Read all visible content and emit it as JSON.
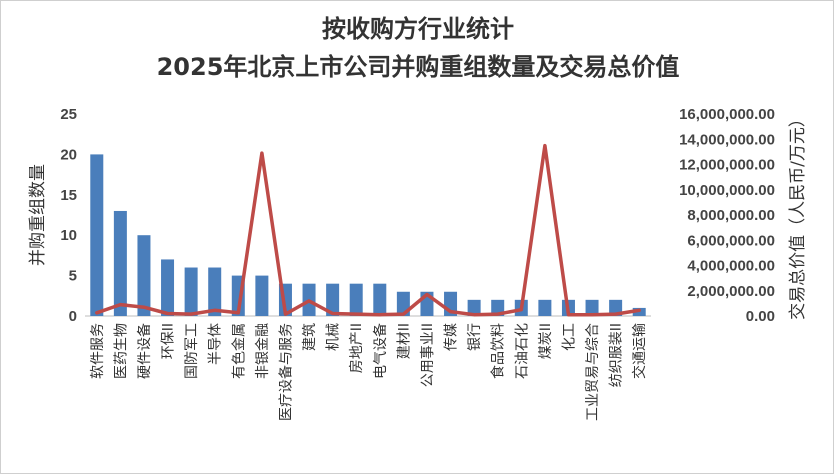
{
  "chart_data": {
    "type": "bar+line",
    "title": "按收购方行业统计",
    "subtitle": "2025年北京上市公司并购重组数量及交易总价值",
    "ylabel_left": "并购重组数量",
    "ylabel_right": "交易总价值（人民币/万元）",
    "ylim_left": [
      0,
      25
    ],
    "ylim_right": [
      0,
      16000000
    ],
    "left_ticks": [
      "0",
      "5",
      "10",
      "15",
      "20",
      "25"
    ],
    "right_ticks": [
      "0.00",
      "2,000,000.00",
      "4,000,000.00",
      "6,000,000.00",
      "8,000,000.00",
      "10,000,000.00",
      "12,000,000.00",
      "14,000,000.00",
      "16,000,000.00"
    ],
    "categories": [
      "软件服务",
      "医药生物",
      "硬件设备",
      "环保II",
      "国防军工",
      "半导体",
      "有色金属",
      "非银金融",
      "医疗设备与服务",
      "建筑",
      "机械",
      "房地产II",
      "电气设备",
      "建材II",
      "公用事业II",
      "传媒",
      "银行",
      "食品饮料",
      "石油石化",
      "煤炭II",
      "化工",
      "工业贸易与综合",
      "纺织服装II",
      "交通运输"
    ],
    "bar_color": "#4a7ebb",
    "line_color": "#be4b48",
    "series": [
      {
        "name": "并购重组数量",
        "type": "bar",
        "axis": "left",
        "values": [
          20,
          13,
          10,
          7,
          6,
          6,
          5,
          5,
          4,
          4,
          4,
          4,
          4,
          3,
          3,
          3,
          2,
          2,
          2,
          2,
          2,
          2,
          2,
          1
        ]
      },
      {
        "name": "交易总价值",
        "type": "line",
        "axis": "right",
        "values": [
          250000,
          900000,
          700000,
          200000,
          150000,
          450000,
          250000,
          12900000,
          150000,
          1200000,
          200000,
          150000,
          100000,
          150000,
          1700000,
          350000,
          100000,
          150000,
          500000,
          13500000,
          100000,
          100000,
          150000,
          450000
        ]
      }
    ],
    "grid": false,
    "legend": "none"
  }
}
